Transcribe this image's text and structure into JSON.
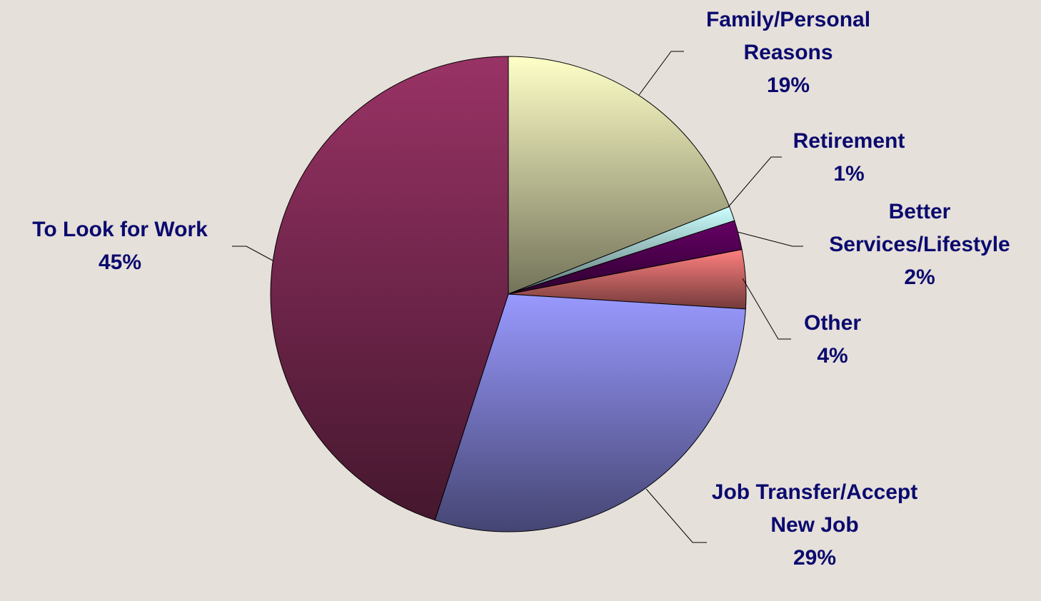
{
  "chart_data": {
    "type": "pie",
    "categories": [
      "Family/Personal Reasons",
      "Retirement",
      "Better Services/Lifestyle",
      "Other",
      "Job Transfer/Accept New Job",
      "To Look for Work"
    ],
    "values": [
      19,
      1,
      2,
      4,
      29,
      45
    ],
    "value_labels": [
      "19%",
      "1%",
      "2%",
      "4%",
      "29%",
      "45%"
    ],
    "colors": [
      "#ffffc8",
      "#ccffff",
      "#660066",
      "#ff8080",
      "#9999ff",
      "#993366"
    ]
  }
}
